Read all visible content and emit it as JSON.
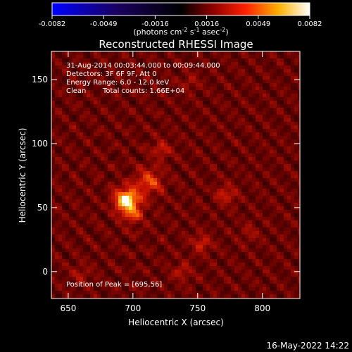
{
  "chart_data": {
    "type": "heatmap",
    "title": "Reconstructed RHESSI Image",
    "xlabel": "Heliocentric X (arcsec)",
    "ylabel": "Heliocentric Y (arcsec)",
    "xlim": [
      637,
      829
    ],
    "ylim": [
      -21,
      172
    ],
    "x_ticks": [
      650,
      700,
      750,
      800
    ],
    "y_ticks": [
      0,
      50,
      100,
      150
    ],
    "colorbar": {
      "range": [
        -0.0082,
        0.0082
      ],
      "ticks": [
        "-0.0082",
        "-0.0049",
        "-0.0016",
        "0.0016",
        "0.0049",
        "0.0082"
      ],
      "unit_prefix": "(photons cm",
      "unit_exp1": "-2",
      "unit_mid": " s",
      "unit_exp2": "-1",
      "unit_mid2": " asec",
      "unit_exp3": "-2",
      "unit_suffix": ")",
      "colormap": [
        "#0000ff",
        "#000000",
        "#ff0000",
        "#ffff00",
        "#ffffff"
      ]
    },
    "info": {
      "time_range": "31-Aug-2014 00:03:44.000 to 00:09:44.000",
      "detectors": "Detectors: 3F 6F 9F, Att 0",
      "energy": "Energy Range: 6.0 - 12.0 keV",
      "clean_label": "Clean",
      "counts": "Total counts: 1.66E+04",
      "peak": "Position of Peak = [695,56]"
    },
    "peak": {
      "x": 695,
      "y": 56
    },
    "sources": [
      {
        "x": 695,
        "y": 56,
        "amp": 1.0,
        "sigma": 6
      },
      {
        "x": 712,
        "y": 70,
        "amp": 0.45,
        "sigma": 7
      },
      {
        "x": 700,
        "y": 45,
        "amp": 0.35,
        "sigma": 6
      },
      {
        "x": 722,
        "y": 95,
        "amp": 0.28,
        "sigma": 5
      },
      {
        "x": 772,
        "y": 60,
        "amp": 0.32,
        "sigma": 5
      },
      {
        "x": 753,
        "y": 22,
        "amp": 0.3,
        "sigma": 5
      },
      {
        "x": 738,
        "y": 0,
        "amp": 0.22,
        "sigma": 5
      },
      {
        "x": 660,
        "y": -2,
        "amp": 0.18,
        "sigma": 5
      },
      {
        "x": 744,
        "y": 148,
        "amp": 0.16,
        "sigma": 5
      },
      {
        "x": 790,
        "y": 30,
        "amp": 0.15,
        "sigma": 5
      }
    ],
    "colormap_note": "blue-black-red-yellow-white"
  },
  "footer": {
    "date": "16-May-2022 14:22"
  }
}
